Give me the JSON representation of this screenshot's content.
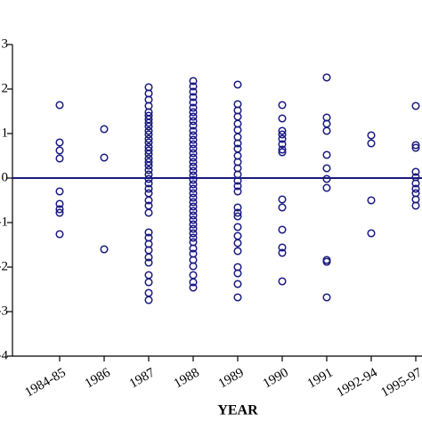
{
  "chart_data": {
    "type": "strip",
    "xlabel": "YEAR",
    "color": "#1a1a80",
    "categories": [
      "1984-85",
      "1986",
      "1987",
      "1988",
      "1989",
      "1990",
      "1991",
      "1992-94",
      "1995-97"
    ],
    "values": [
      [
        1.64,
        0.8,
        0.62,
        0.44,
        -0.3,
        -0.58,
        -0.7,
        -0.78,
        -1.26
      ],
      [
        1.1,
        0.46,
        -1.6
      ],
      [
        2.04,
        1.9,
        1.76,
        1.62,
        1.48,
        1.4,
        1.32,
        1.24,
        1.16,
        1.06,
        0.98,
        0.88,
        0.8,
        0.7,
        0.62,
        0.54,
        0.44,
        0.36,
        0.28,
        0.18,
        0.08,
        -0.02,
        -0.12,
        -0.24,
        -0.34,
        -0.5,
        -0.62,
        -0.78,
        -1.22,
        -1.34,
        -1.48,
        -1.62,
        -1.78,
        -1.9,
        -2.18,
        -2.34,
        -2.58,
        -2.74
      ],
      [
        2.18,
        2.06,
        1.94,
        1.82,
        1.7,
        1.58,
        1.48,
        1.38,
        1.28,
        1.18,
        1.06,
        0.96,
        0.86,
        0.76,
        0.66,
        0.56,
        0.46,
        0.36,
        0.26,
        0.16,
        0.06,
        -0.04,
        -0.14,
        -0.24,
        -0.34,
        -0.44,
        -0.54,
        -0.64,
        -0.74,
        -0.84,
        -0.94,
        -1.04,
        -1.14,
        -1.24,
        -1.34,
        -1.44,
        -1.58,
        -1.7,
        -1.84,
        -1.98,
        -2.18,
        -2.34,
        -2.46
      ],
      [
        2.1,
        1.66,
        1.52,
        1.38,
        1.22,
        1.08,
        0.92,
        0.78,
        0.66,
        0.5,
        0.36,
        0.22,
        0.08,
        -0.06,
        -0.18,
        -0.3,
        -0.66,
        -0.78,
        -0.86,
        -1.1,
        -1.3,
        -1.46,
        -1.64,
        -2,
        -2.14,
        -2.38,
        -2.68
      ],
      [
        1.64,
        1.34,
        1.06,
        0.98,
        0.88,
        0.76,
        0.64,
        0.58,
        -0.48,
        -0.66,
        -1.16,
        -1.56,
        -1.68,
        -2.32
      ],
      [
        2.26,
        1.36,
        1.22,
        1.06,
        0.52,
        0.22,
        -0.02,
        -0.22,
        -1.84,
        -1.88,
        -2.68
      ],
      [
        0.96,
        0.78,
        -0.5,
        -1.24
      ],
      [
        1.62,
        0.74,
        0.68,
        0.14,
        0.02,
        -0.12,
        -0.24,
        -0.34,
        -0.48,
        -0.62
      ]
    ],
    "reference_line": 0,
    "ylim": [
      -4,
      3
    ],
    "yticks": [
      3,
      2,
      1,
      0,
      -1,
      -2,
      -3,
      -4
    ]
  }
}
